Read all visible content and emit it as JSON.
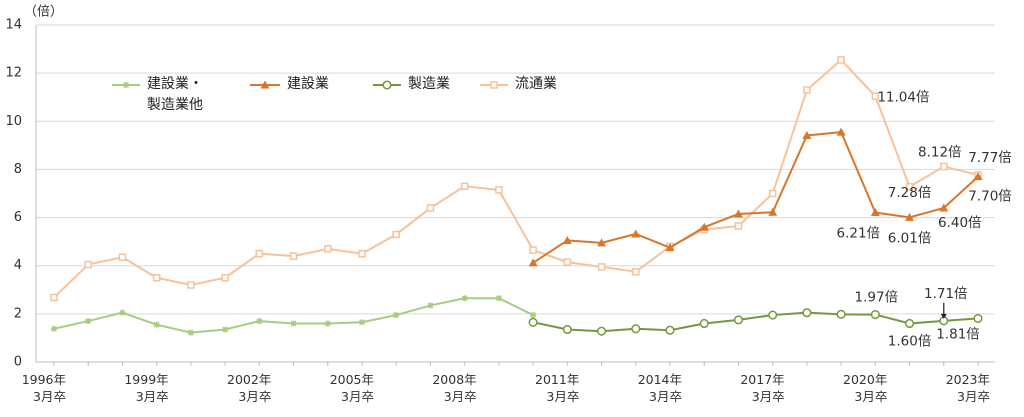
{
  "chart_data": {
    "type": "line",
    "y_unit": "（倍）",
    "categories": [
      "1996年\n3月卒",
      null,
      null,
      "1999年\n3月卒",
      null,
      null,
      "2002年\n3月卒",
      null,
      null,
      "2005年\n3月卒",
      null,
      null,
      "2008年\n3月卒",
      null,
      null,
      "2011年\n3月卒",
      null,
      null,
      "2014年\n3月卒",
      null,
      null,
      "2017年\n3月卒",
      null,
      null,
      "2020年\n3月卒",
      null,
      null,
      "2023年\n3月卒"
    ],
    "ylim": [
      0,
      14
    ],
    "yticks": [
      0,
      2,
      4,
      6,
      8,
      10,
      12,
      14
    ],
    "grid": true,
    "series": [
      {
        "name": "建設業・\n製造業他",
        "color": "#a6cc82",
        "marker": "star",
        "values": [
          1.38,
          1.7,
          2.05,
          1.55,
          1.22,
          1.35,
          1.7,
          1.6,
          1.6,
          1.65,
          1.95,
          2.35,
          2.65,
          2.65,
          1.95,
          null,
          null,
          null,
          null,
          null,
          null,
          null,
          null,
          null,
          null,
          null,
          null,
          null
        ]
      },
      {
        "name": "建設業",
        "color": "#d9762b",
        "marker": "triangle",
        "values": [
          null,
          null,
          null,
          null,
          null,
          null,
          null,
          null,
          null,
          null,
          null,
          null,
          null,
          null,
          4.12,
          5.05,
          4.95,
          5.32,
          4.75,
          5.6,
          6.15,
          6.22,
          9.41,
          9.55,
          6.21,
          6.01,
          6.4,
          7.7
        ],
        "value_labels": [
          null,
          null,
          null,
          null,
          null,
          null,
          null,
          null,
          null,
          null,
          null,
          null,
          null,
          null,
          null,
          null,
          null,
          null,
          null,
          null,
          null,
          null,
          null,
          null,
          "6.21倍",
          "6.01倍",
          "6.40倍",
          "7.70倍"
        ]
      },
      {
        "name": "製造業",
        "color": "#77963f",
        "marker": "circle",
        "values": [
          null,
          null,
          null,
          null,
          null,
          null,
          null,
          null,
          null,
          null,
          null,
          null,
          null,
          null,
          1.65,
          1.35,
          1.28,
          1.38,
          1.32,
          1.6,
          1.75,
          1.95,
          2.05,
          1.98,
          1.97,
          1.6,
          1.71,
          1.81
        ],
        "value_labels": [
          null,
          null,
          null,
          null,
          null,
          null,
          null,
          null,
          null,
          null,
          null,
          null,
          null,
          null,
          null,
          null,
          null,
          null,
          null,
          null,
          null,
          null,
          null,
          null,
          "1.97倍",
          "1.60倍",
          "1.71倍",
          "1.81倍"
        ]
      },
      {
        "name": "流通業",
        "color": "#f5c29a",
        "marker": "square",
        "values": [
          2.68,
          4.05,
          4.35,
          3.5,
          3.2,
          3.5,
          4.5,
          4.4,
          4.7,
          4.5,
          5.3,
          6.4,
          7.3,
          7.15,
          4.65,
          4.15,
          3.95,
          3.75,
          4.8,
          5.5,
          5.65,
          7.0,
          11.3,
          12.55,
          11.04,
          7.28,
          8.12,
          7.77
        ],
        "value_labels": [
          null,
          null,
          null,
          null,
          null,
          null,
          null,
          null,
          null,
          null,
          null,
          null,
          null,
          null,
          null,
          null,
          null,
          null,
          null,
          null,
          null,
          null,
          null,
          null,
          "11.04倍",
          "7.28倍",
          "8.12倍",
          "7.77倍"
        ]
      }
    ]
  }
}
